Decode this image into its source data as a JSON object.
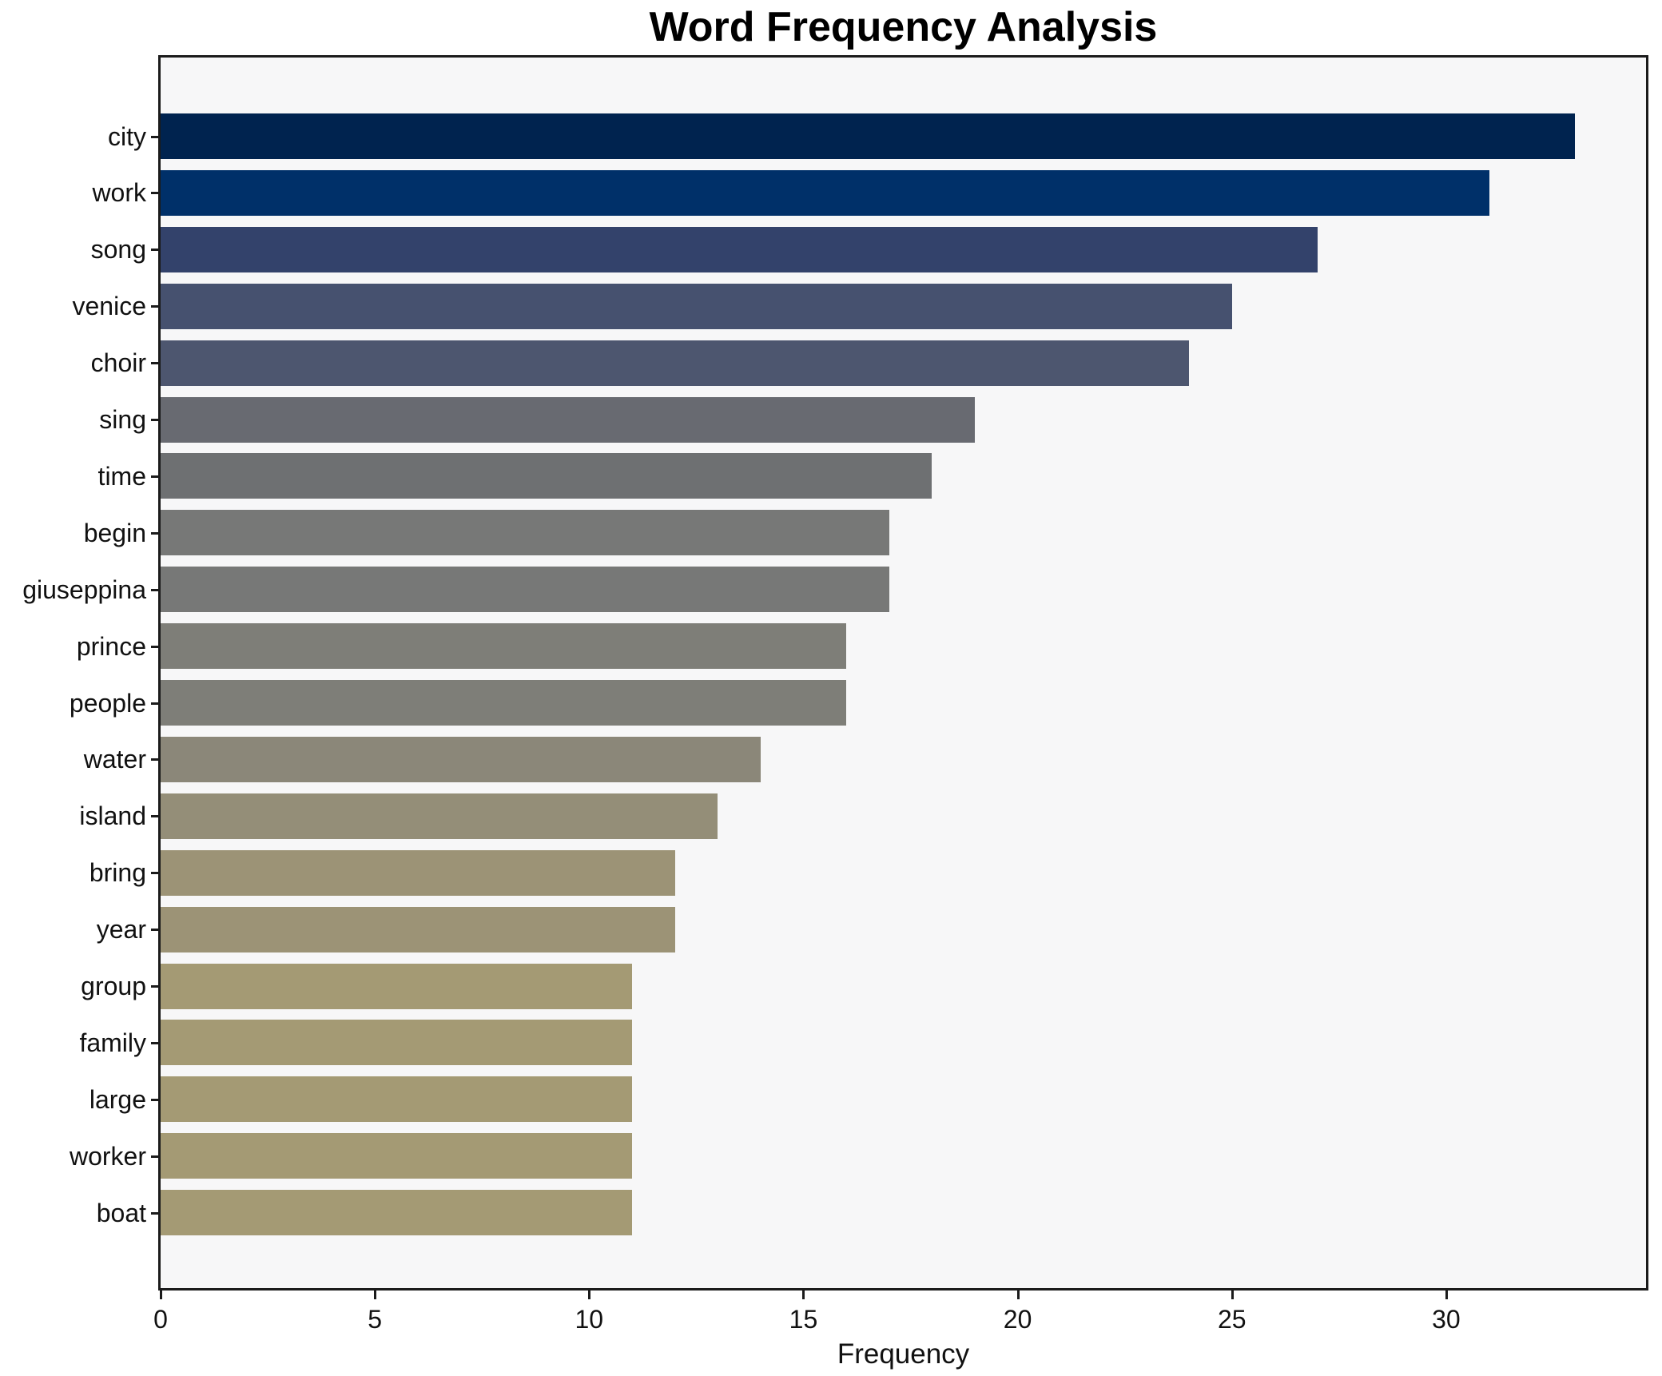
{
  "chart_data": {
    "type": "bar",
    "orientation": "horizontal",
    "title": "Word Frequency Analysis",
    "xlabel": "Frequency",
    "ylabel": "",
    "categories": [
      "city",
      "work",
      "song",
      "venice",
      "choir",
      "sing",
      "time",
      "begin",
      "giuseppina",
      "prince",
      "people",
      "water",
      "island",
      "bring",
      "year",
      "group",
      "family",
      "large",
      "worker",
      "boat"
    ],
    "values": [
      33,
      31,
      27,
      25,
      24,
      19,
      18,
      17,
      17,
      16,
      16,
      14,
      13,
      12,
      12,
      11,
      11,
      11,
      11,
      11
    ],
    "bar_colors": [
      "#00234f",
      "#003069",
      "#33426b",
      "#46516f",
      "#4d566f",
      "#686a71",
      "#6e7072",
      "#777877",
      "#777877",
      "#7e7e78",
      "#7e7e78",
      "#8b8779",
      "#948e78",
      "#9c9376",
      "#9c9376",
      "#a49a74",
      "#a49a74",
      "#a49a74",
      "#a49a74",
      "#a49a74"
    ],
    "xticks": [
      0,
      5,
      10,
      15,
      20,
      25,
      30
    ],
    "xlim": [
      0,
      34.7
    ],
    "grid": false,
    "legend": false,
    "plot_background": "#f7f7f8",
    "spine_color": "#1b1b1b",
    "text_color": "#111111"
  }
}
